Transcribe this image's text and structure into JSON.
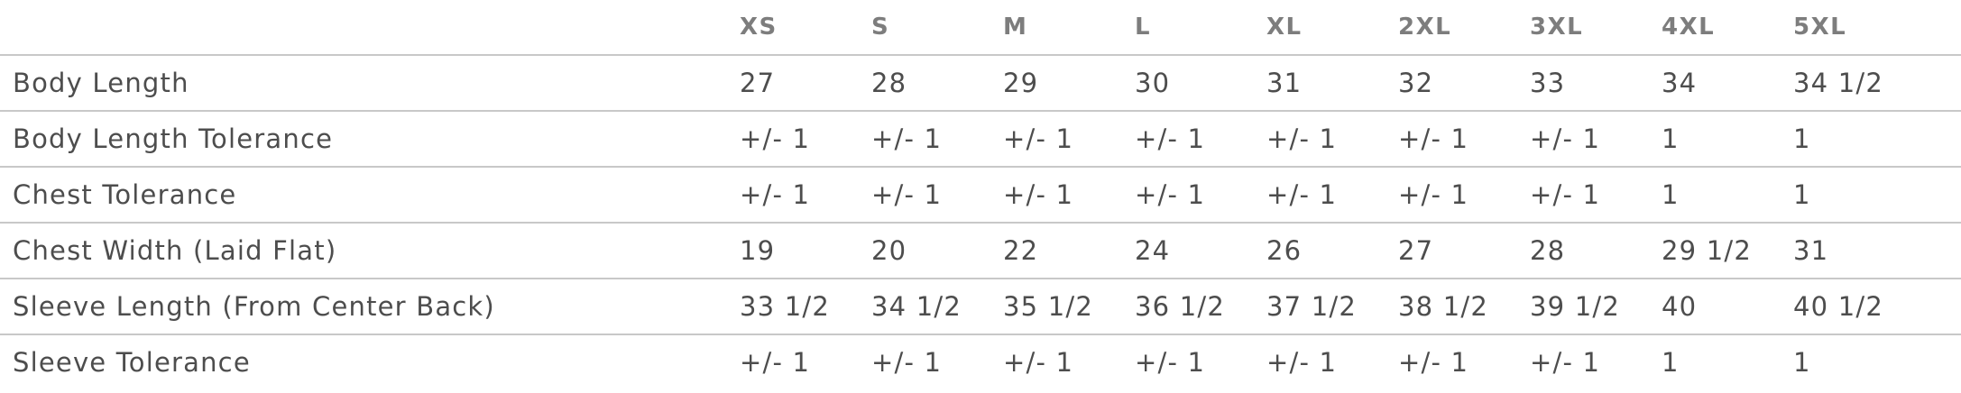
{
  "colors": {
    "background": "#ffffff",
    "header_text": "#7d7d7d",
    "body_text": "#4d4d4d",
    "row_border": "#c8c8c8"
  },
  "table": {
    "columns": [
      "",
      "XS",
      "S",
      "M",
      "L",
      "XL",
      "2XL",
      "3XL",
      "4XL",
      "5XL"
    ],
    "rows": [
      {
        "label": "Body Length",
        "values": [
          "27",
          "28",
          "29",
          "30",
          "31",
          "32",
          "33",
          "34",
          "34 1/2"
        ]
      },
      {
        "label": "Body Length Tolerance",
        "values": [
          "+/- 1",
          "+/- 1",
          "+/- 1",
          "+/- 1",
          "+/- 1",
          "+/- 1",
          "+/- 1",
          "1",
          "1"
        ]
      },
      {
        "label": "Chest Tolerance",
        "values": [
          "+/- 1",
          "+/- 1",
          "+/- 1",
          "+/- 1",
          "+/- 1",
          "+/- 1",
          "+/- 1",
          "1",
          "1"
        ]
      },
      {
        "label": "Chest Width (Laid Flat)",
        "values": [
          "19",
          "20",
          "22",
          "24",
          "26",
          "27",
          "28",
          "29 1/2",
          "31"
        ]
      },
      {
        "label": "Sleeve Length (From Center Back)",
        "values": [
          "33 1/2",
          "34 1/2",
          "35 1/2",
          "36 1/2",
          "37 1/2",
          "38 1/2",
          "39 1/2",
          "40",
          "40 1/2"
        ]
      },
      {
        "label": "Sleeve Tolerance",
        "values": [
          "+/- 1",
          "+/- 1",
          "+/- 1",
          "+/- 1",
          "+/- 1",
          "+/- 1",
          "+/- 1",
          "1",
          "1"
        ]
      }
    ]
  }
}
